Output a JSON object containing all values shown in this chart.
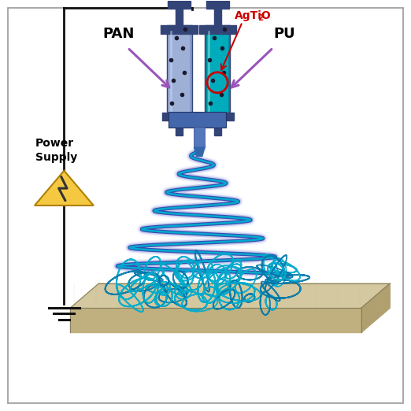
{
  "fig_width": 5.22,
  "fig_height": 5.22,
  "dpi": 100,
  "background_color": "#ffffff",
  "border_color": "#999999",
  "syringe1_color": "#8899cc",
  "syringe1_fill": "#aabbdd",
  "syringe2_color": "#008899",
  "syringe2_fill": "#00bbcc",
  "syringe_cap_color": "#334477",
  "spiral_inner_color": "#00aacc",
  "spiral_outer_color": "#2233aa",
  "spiral_glow_color": "#8899ee",
  "fiber_color1": "#0077aa",
  "fiber_color2": "#00aacc",
  "collector_top": "#d4c8a0",
  "collector_front": "#c0b080",
  "collector_right": "#b0a070",
  "collector_side_top": "#e0d4b0",
  "power_box_edge": "#000000",
  "power_tri_color": "#f5c842",
  "power_tri_edge": "#b08000",
  "wire_color": "#111111",
  "ground_color": "#111111",
  "label_pan": "PAN",
  "label_pu": "PU",
  "label_agtio2": "AgTiO",
  "label_agtio2_sub": "2",
  "label_power": "Power\nSupply",
  "arrow_color": "#9955bb",
  "text_color": "#000000",
  "agtio2_color": "#cc0000",
  "circle_color": "#cc0000"
}
